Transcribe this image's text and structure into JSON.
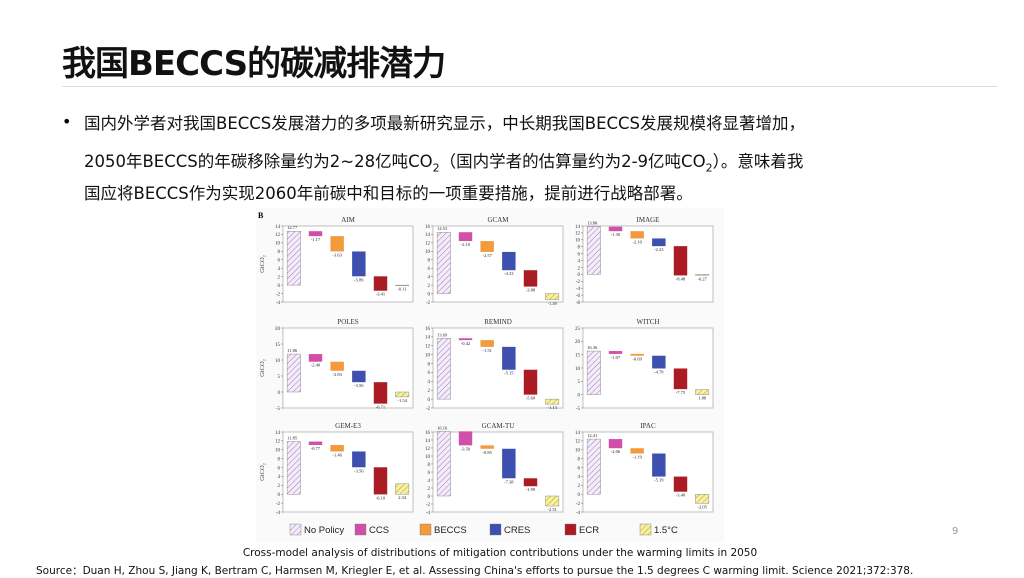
{
  "header": {
    "title": "我国BECCS的碳减排潜力"
  },
  "bullet": {
    "line1": "国内外学者对我国BECCS发展潜力的多项最新研究显示，中长期我国BECCS发展规模将显著增加，",
    "line2a": "2050年BECCS的年碳移除量约为2~28亿吨CO",
    "line2b": "2",
    "line2c": "（国内学者的估算量约为2-9亿吨CO",
    "line2d": "2",
    "line2e": "）。意味着我",
    "line3": "国应将BECCS作为实现2060年前碳中和目标的一项重要措施，提前进行战略部署。"
  },
  "figure": {
    "label": "B",
    "y_label": "GtCO₂",
    "legend": [
      {
        "name": "No Policy",
        "color": "#e6d6f0"
      },
      {
        "name": "CCS",
        "color": "#d24fa9"
      },
      {
        "name": "BECCS",
        "color": "#f39a3c"
      },
      {
        "name": "CRES",
        "color": "#3d50b0"
      },
      {
        "name": "ECR",
        "color": "#ab1b23"
      },
      {
        "name": "1.5°C",
        "color": "#f2ec86"
      }
    ],
    "caption": "Cross-model analysis of distributions of mitigation contributions under the warming limits in 2050"
  },
  "chart_data": [
    {
      "type": "waterfall",
      "title": "AIM",
      "values": [
        12.77,
        -1.17,
        -3.63,
        -5.89,
        -3.41,
        -0.11
      ],
      "value_labels": [
        "12.77",
        "-1.17",
        "-3.63",
        "-5.89",
        "-3.41",
        "-0.11"
      ],
      "ylim": [
        -4,
        14
      ],
      "yticks": [
        -4,
        -2,
        0,
        2,
        4,
        6,
        8,
        10,
        12,
        14
      ]
    },
    {
      "type": "waterfall",
      "title": "GCAM",
      "values": [
        14.53,
        -2.1,
        -2.57,
        -4.33,
        -3.88,
        -1.49
      ],
      "value_labels": [
        "14.53",
        "-2.10",
        "-2.57",
        "-4.33",
        "-3.88",
        "-1.49"
      ],
      "ylim": [
        -2,
        16
      ],
      "yticks": [
        -2,
        0,
        2,
        4,
        6,
        8,
        10,
        12,
        14,
        16
      ]
    },
    {
      "type": "waterfall",
      "title": "IMAGE",
      "values": [
        13.8,
        -1.3,
        -2.1,
        -2.23,
        -8.48,
        -0.27
      ],
      "value_labels": [
        "13.80",
        "-1.30",
        "-2.10",
        "-2.23",
        "-8.48",
        "-0.27"
      ],
      "ylim": [
        -8,
        14
      ],
      "yticks": [
        -8,
        -6,
        -4,
        -2,
        0,
        2,
        4,
        6,
        8,
        10,
        12,
        14
      ]
    },
    {
      "type": "waterfall",
      "title": "POLES",
      "values": [
        11.86,
        -2.4,
        -2.83,
        -3.56,
        -6.71,
        -1.54
      ],
      "value_labels": [
        "11.86",
        "-2.40",
        "-2.83",
        "-3.56",
        "-6.71",
        "-1.54"
      ],
      "ylim": [
        -5,
        20
      ],
      "yticks": [
        -5,
        0,
        5,
        10,
        15,
        20
      ]
    },
    {
      "type": "waterfall",
      "title": "REMIND",
      "values": [
        13.69,
        -0.42,
        -1.51,
        -5.15,
        -5.6,
        -1.13
      ],
      "value_labels": [
        "13.69",
        "-0.42",
        "-1.51",
        "-5.15",
        "-5.60",
        "-1.13"
      ],
      "ylim": [
        -2,
        16
      ],
      "yticks": [
        -2,
        0,
        2,
        4,
        6,
        8,
        10,
        12,
        14,
        16
      ]
    },
    {
      "type": "waterfall",
      "title": "WITCH",
      "values": [
        16.36,
        -1.07,
        -0.69,
        -4.78,
        -7.75,
        1.88
      ],
      "value_labels": [
        "16.36",
        "-1.07",
        "-0.69",
        "-4.78",
        "-7.75",
        "1.88"
      ],
      "ylim": [
        -5,
        25
      ],
      "yticks": [
        -5,
        0,
        5,
        10,
        15,
        20,
        25
      ]
    },
    {
      "type": "waterfall",
      "title": "GEM-E3",
      "values": [
        11.85,
        -0.77,
        -1.46,
        -3.56,
        -6.1,
        2.34
      ],
      "value_labels": [
        "11.85",
        "-0.77",
        "-1.46",
        "-3.56",
        "-6.10",
        "2.34"
      ],
      "ylim": [
        -4,
        14
      ],
      "yticks": [
        -4,
        -2,
        0,
        2,
        4,
        6,
        8,
        10,
        12,
        14
      ]
    },
    {
      "type": "waterfall",
      "title": "GCAM-TU",
      "values": [
        16.16,
        -3.5,
        -0.85,
        -7.38,
        -1.99,
        -2.51
      ],
      "value_labels": [
        "16.16",
        "-3.50",
        "-0.85",
        "-7.38",
        "-1.99",
        "-2.51"
      ],
      "ylim": [
        -4,
        16
      ],
      "yticks": [
        -4,
        -2,
        0,
        2,
        4,
        6,
        8,
        10,
        12,
        14,
        16
      ]
    },
    {
      "type": "waterfall",
      "title": "IPAC",
      "values": [
        12.41,
        -2.06,
        -1.19,
        -5.19,
        -3.4,
        -2.05
      ],
      "value_labels": [
        "12.41",
        "-2.06",
        "-1.19",
        "-5.19",
        "-3.40",
        "-2.05"
      ],
      "ylim": [
        -4,
        14
      ],
      "yticks": [
        -4,
        -2,
        0,
        2,
        4,
        6,
        8,
        10,
        12,
        14
      ]
    }
  ],
  "source": "Source：Duan H, Zhou S, Jiang K, Bertram C, Harmsen M, Kriegler E, et al. Assessing China's efforts to pursue the 1.5 degrees C warming limit. Science 2021;372:378.",
  "page_number": "9"
}
